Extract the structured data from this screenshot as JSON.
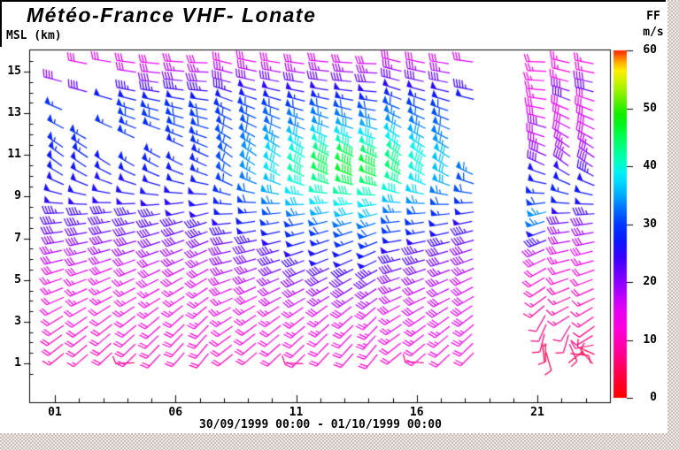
{
  "header": {
    "title": "Météo-France VHF- Lonate"
  },
  "axes": {
    "y_label": "MSL (km)",
    "y_ticks": [
      15,
      13,
      11,
      9,
      7,
      5,
      3,
      1
    ],
    "x_ticks": [
      {
        "hour": 1,
        "label": "01"
      },
      {
        "hour": 6,
        "label": "06"
      },
      {
        "hour": 11,
        "label": "11"
      },
      {
        "hour": 16,
        "label": "16"
      },
      {
        "hour": 21,
        "label": "21"
      }
    ],
    "caption": "30/09/1999 00:00 - 01/10/1999 00:00"
  },
  "colorbar": {
    "title": "FF",
    "units": "m/s",
    "ticks": [
      60,
      50,
      40,
      30,
      20,
      10,
      0
    ],
    "stops": [
      [
        0,
        "#ff0000"
      ],
      [
        4,
        "#ff0044"
      ],
      [
        8,
        "#ff0099"
      ],
      [
        12,
        "#ff00dd"
      ],
      [
        15,
        "#e800f2"
      ],
      [
        18,
        "#b200ff"
      ],
      [
        21,
        "#7700ff"
      ],
      [
        24,
        "#3c00ff"
      ],
      [
        27,
        "#0d16ff"
      ],
      [
        30,
        "#0038ff"
      ],
      [
        33,
        "#0077ff"
      ],
      [
        35,
        "#00aaff"
      ],
      [
        37,
        "#00d5ff"
      ],
      [
        39,
        "#00f2f2"
      ],
      [
        41,
        "#00ffbb"
      ],
      [
        43,
        "#00ff88"
      ],
      [
        45,
        "#00ff55"
      ],
      [
        47,
        "#00f722"
      ],
      [
        49,
        "#11ee00"
      ],
      [
        51,
        "#55ee00"
      ],
      [
        53,
        "#99f200"
      ],
      [
        55,
        "#d5f200"
      ],
      [
        56.5,
        "#ffee00"
      ],
      [
        58,
        "#ffaa00"
      ],
      [
        59,
        "#ff6600"
      ],
      [
        60,
        "#ff2200"
      ]
    ]
  },
  "chart_data": {
    "type": "wind-barb-time-height",
    "title": "Météo-France VHF- Lonate",
    "x_range_hours": [
      0,
      24
    ],
    "y_range_km": [
      0,
      16
    ],
    "speed_units": "m/s",
    "barb_convention": {
      "pennant_ms": 25,
      "full_ms": 5,
      "half_ms": 2.5
    },
    "altitudes_km": [
      1.15,
      1.6,
      2.05,
      2.5,
      2.95,
      3.4,
      3.85,
      4.3,
      4.75,
      5.2,
      5.65,
      6.1,
      6.55,
      7.0,
      7.45,
      7.9,
      8.35,
      8.8,
      9.25,
      9.7,
      10.15,
      10.6,
      11.05,
      11.5,
      11.95,
      12.4,
      12.85,
      13.3,
      13.75,
      14.2,
      14.65,
      15.1,
      15.55
    ],
    "directions_by_level": [
      225,
      225,
      226,
      228,
      230,
      232,
      236,
      240,
      242,
      245,
      247,
      250,
      252,
      254,
      256,
      258,
      262,
      268,
      278,
      288,
      295,
      300,
      300,
      298,
      295,
      292,
      290,
      287,
      284,
      281,
      279,
      278,
      277
    ],
    "speed_grid": {
      "1": [
        null,
        9,
        10,
        10,
        11,
        11,
        12,
        12,
        13,
        14,
        15,
        17,
        18,
        20,
        22,
        23,
        24,
        25,
        26,
        26,
        27,
        27,
        28,
        28,
        null,
        29,
        null,
        29,
        null,
        null,
        20,
        null,
        null
      ],
      "2": [
        null,
        9,
        10,
        11,
        11,
        12,
        12,
        13,
        13,
        14,
        15,
        17,
        18,
        20,
        22,
        23,
        24,
        25,
        26,
        26,
        27,
        27,
        28,
        28,
        29,
        null,
        null,
        null,
        null,
        22,
        null,
        null,
        15
      ],
      "3": [
        null,
        10,
        10,
        11,
        11,
        12,
        12,
        13,
        14,
        14,
        15,
        17,
        19,
        20,
        22,
        23,
        24,
        25,
        26,
        26,
        27,
        27,
        null,
        null,
        null,
        29,
        null,
        null,
        27,
        null,
        null,
        null,
        16
      ],
      "4": [
        6,
        10,
        10,
        11,
        12,
        12,
        13,
        13,
        14,
        14,
        16,
        17,
        19,
        20,
        22,
        23,
        24,
        25,
        26,
        26,
        27,
        28,
        null,
        null,
        29,
        29,
        30,
        29,
        27,
        24,
        null,
        17,
        15
      ],
      "5": [
        null,
        10,
        10,
        11,
        12,
        12,
        13,
        13,
        14,
        15,
        16,
        17,
        19,
        21,
        22,
        23,
        24,
        25,
        26,
        26,
        27,
        28,
        28,
        null,
        null,
        29,
        30,
        29,
        27,
        24,
        21,
        17,
        15
      ],
      "6": [
        null,
        10,
        11,
        11,
        12,
        12,
        13,
        13,
        14,
        15,
        16,
        18,
        19,
        21,
        22,
        23,
        25,
        25,
        26,
        27,
        27,
        28,
        null,
        28,
        29,
        30,
        30,
        29,
        27,
        24,
        21,
        18,
        15
      ],
      "7": [
        null,
        10,
        11,
        11,
        12,
        13,
        13,
        14,
        14,
        15,
        16,
        18,
        19,
        21,
        23,
        24,
        25,
        26,
        26,
        27,
        28,
        28,
        28,
        29,
        29,
        30,
        30,
        29,
        27,
        24,
        21,
        18,
        15
      ],
      "8": [
        null,
        10,
        11,
        11,
        12,
        13,
        13,
        14,
        15,
        16,
        18,
        20,
        20,
        22,
        24,
        25,
        27,
        28,
        29,
        30,
        31,
        31,
        31,
        31,
        31,
        30,
        30,
        29,
        27,
        24,
        21,
        18,
        15
      ],
      "9": [
        null,
        10,
        11,
        12,
        12,
        13,
        14,
        15,
        16,
        18,
        19,
        21,
        22,
        24,
        26,
        27,
        28,
        30,
        32,
        33,
        34,
        34,
        34,
        33,
        32,
        31,
        31,
        30,
        27,
        25,
        21,
        18,
        15
      ],
      "10": [
        null,
        11,
        11,
        12,
        12,
        13,
        14,
        16,
        17,
        19,
        21,
        23,
        23,
        25,
        27,
        29,
        31,
        33,
        35,
        36,
        38,
        37,
        37,
        35,
        34,
        32,
        32,
        30,
        27,
        25,
        22,
        18,
        15
      ],
      "11": [
        7,
        11,
        11,
        12,
        13,
        13,
        14,
        17,
        18,
        20,
        22,
        24,
        25,
        27,
        29,
        30,
        33,
        36,
        38,
        40,
        42,
        41,
        40,
        38,
        36,
        33,
        33,
        30,
        28,
        25,
        22,
        18,
        16
      ],
      "12": [
        null,
        11,
        12,
        12,
        13,
        14,
        15,
        18,
        19,
        22,
        23,
        26,
        26,
        28,
        30,
        32,
        35,
        38,
        41,
        43,
        45,
        45,
        43,
        40,
        37,
        34,
        33,
        31,
        28,
        25,
        22,
        19,
        16
      ],
      "13": [
        null,
        11,
        12,
        12,
        13,
        14,
        15,
        18,
        20,
        22,
        24,
        26,
        27,
        29,
        31,
        33,
        36,
        39,
        42,
        45,
        47,
        46,
        45,
        41,
        38,
        35,
        33,
        31,
        28,
        25,
        22,
        19,
        16
      ],
      "14": [
        null,
        11,
        12,
        13,
        13,
        14,
        15,
        18,
        19,
        22,
        23,
        26,
        27,
        29,
        31,
        33,
        36,
        38,
        41,
        44,
        46,
        46,
        44,
        41,
        38,
        35,
        33,
        31,
        28,
        25,
        22,
        19,
        16
      ],
      "15": [
        null,
        11,
        12,
        13,
        14,
        14,
        15,
        17,
        18,
        20,
        22,
        24,
        25,
        27,
        30,
        31,
        33,
        36,
        40,
        42,
        44,
        43,
        42,
        39,
        37,
        34,
        33,
        31,
        28,
        25,
        22,
        19,
        16
      ],
      "16": [
        7,
        11,
        12,
        13,
        14,
        15,
        16,
        16,
        17,
        19,
        21,
        23,
        23,
        25,
        28,
        29,
        31,
        34,
        37,
        38,
        40,
        40,
        39,
        37,
        35,
        33,
        32,
        30,
        28,
        25,
        22,
        19,
        16
      ],
      "17": [
        null,
        11,
        12,
        13,
        14,
        15,
        16,
        16,
        17,
        18,
        19,
        21,
        22,
        24,
        26,
        27,
        29,
        31,
        33,
        35,
        36,
        36,
        36,
        34,
        33,
        32,
        31,
        30,
        27,
        25,
        22,
        19,
        16
      ],
      "18": [
        null,
        11,
        12,
        13,
        14,
        15,
        15,
        16,
        16,
        16,
        18,
        20,
        20,
        22,
        24,
        25,
        27,
        29,
        31,
        31,
        33,
        null,
        null,
        null,
        null,
        null,
        null,
        null,
        27,
        24,
        null,
        null,
        16
      ],
      "19": null,
      "20": null,
      "21": [
        4,
        5,
        5,
        6,
        7,
        7,
        8,
        9,
        10,
        11,
        12,
        15,
        18,
        24,
        26,
        33,
        34,
        30,
        28,
        27,
        26,
        22,
        20,
        18,
        17,
        20,
        15,
        15,
        14,
        14,
        13,
        13,
        12
      ],
      "22": [
        4,
        5,
        6,
        6,
        7,
        8,
        8,
        9,
        10,
        11,
        12,
        13,
        15,
        17,
        19,
        22,
        25,
        27,
        28,
        27,
        25,
        21,
        19,
        18,
        17,
        16,
        15,
        15,
        22,
        20,
        13,
        13,
        13
      ],
      "23": [
        5,
        5,
        6,
        7,
        7,
        8,
        9,
        9,
        10,
        11,
        12,
        14,
        15,
        17,
        19,
        21,
        24,
        26,
        27,
        26,
        24,
        21,
        19,
        18,
        17,
        16,
        16,
        15,
        15,
        22,
        20,
        13,
        13
      ]
    },
    "dir_overrides": [
      [
        4,
        0,
        268
      ],
      [
        11,
        0,
        272
      ],
      [
        16,
        0,
        270
      ],
      [
        21,
        0,
        0
      ],
      [
        21,
        1,
        170
      ],
      [
        21,
        2,
        185
      ],
      [
        21,
        3,
        200
      ],
      [
        21,
        4,
        210
      ],
      [
        21,
        5,
        215
      ],
      [
        22,
        0,
        45
      ],
      [
        22,
        1,
        90
      ],
      [
        22,
        2,
        150
      ],
      [
        22,
        3,
        190
      ],
      [
        22,
        4,
        205
      ],
      [
        23,
        0,
        315
      ],
      [
        23,
        1,
        290
      ],
      [
        23,
        2,
        255
      ],
      [
        23,
        3,
        235
      ]
    ]
  }
}
